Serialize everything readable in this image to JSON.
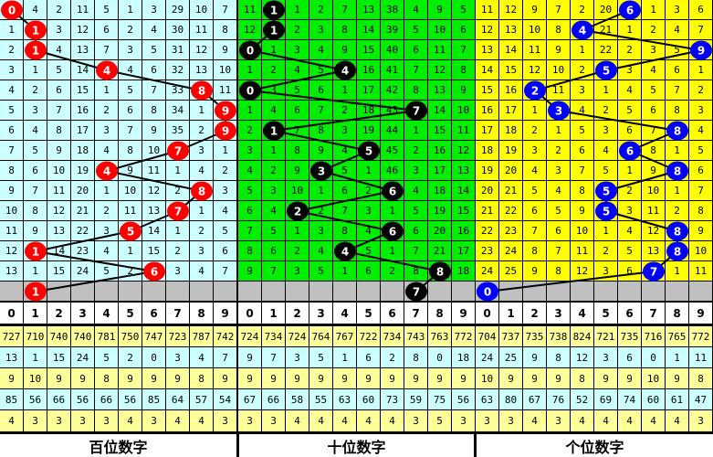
{
  "header_digits": [
    "0",
    "1",
    "2",
    "3",
    "4",
    "5",
    "6",
    "7",
    "8",
    "9"
  ],
  "panels": [
    {
      "title": "百位数字",
      "bg_color": "#ccffff",
      "ball_color": "#ff0000",
      "rows": [
        [
          0,
          4,
          2,
          11,
          5,
          1,
          3,
          29,
          10,
          7
        ],
        [
          1,
          1,
          3,
          12,
          6,
          2,
          4,
          30,
          11,
          8
        ],
        [
          2,
          1,
          4,
          13,
          7,
          3,
          5,
          31,
          12,
          9
        ],
        [
          3,
          1,
          5,
          14,
          4,
          4,
          6,
          32,
          13,
          10
        ],
        [
          4,
          2,
          6,
          15,
          1,
          5,
          7,
          33,
          8,
          11
        ],
        [
          5,
          3,
          7,
          16,
          2,
          6,
          8,
          34,
          1,
          9
        ],
        [
          6,
          4,
          8,
          17,
          3,
          7,
          9,
          35,
          2,
          9
        ],
        [
          7,
          5,
          9,
          18,
          4,
          8,
          10,
          7,
          3,
          1
        ],
        [
          8,
          6,
          10,
          19,
          4,
          9,
          11,
          1,
          4,
          2
        ],
        [
          9,
          7,
          11,
          20,
          1,
          10,
          12,
          2,
          8,
          3
        ],
        [
          10,
          8,
          12,
          21,
          2,
          11,
          13,
          7,
          1,
          4
        ],
        [
          11,
          9,
          13,
          22,
          3,
          5,
          14,
          1,
          2,
          5
        ],
        [
          12,
          1,
          14,
          23,
          4,
          1,
          15,
          2,
          3,
          6
        ],
        [
          13,
          1,
          15,
          24,
          5,
          2,
          6,
          3,
          4,
          7
        ]
      ],
      "hits": [
        0,
        1,
        1,
        4,
        8,
        9,
        9,
        7,
        4,
        8,
        7,
        5,
        1,
        6
      ],
      "pending": 1,
      "stats": [
        [
          727,
          710,
          740,
          740,
          781,
          750,
          747,
          723,
          787,
          742
        ],
        [
          13,
          1,
          15,
          24,
          5,
          2,
          0,
          3,
          4,
          7
        ],
        [
          9,
          10,
          9,
          9,
          8,
          9,
          9,
          9,
          8,
          9
        ],
        [
          85,
          56,
          66,
          56,
          66,
          56,
          85,
          64,
          57,
          54
        ],
        [
          4,
          3,
          3,
          3,
          3,
          4,
          3,
          4,
          4,
          3
        ]
      ]
    },
    {
      "title": "十位数字",
      "bg_color": "#00ee00",
      "ball_color": "#000000",
      "rows": [
        [
          11,
          1,
          1,
          2,
          7,
          13,
          38,
          4,
          9,
          5
        ],
        [
          12,
          1,
          2,
          3,
          8,
          14,
          39,
          5,
          10,
          6
        ],
        [
          0,
          1,
          3,
          4,
          9,
          15,
          40,
          6,
          11,
          7
        ],
        [
          1,
          2,
          4,
          5,
          4,
          16,
          41,
          7,
          12,
          8
        ],
        [
          0,
          3,
          5,
          6,
          1,
          17,
          42,
          8,
          13,
          9
        ],
        [
          1,
          4,
          6,
          7,
          2,
          18,
          43,
          7,
          14,
          10
        ],
        [
          2,
          1,
          7,
          8,
          3,
          19,
          44,
          1,
          15,
          11
        ],
        [
          3,
          1,
          8,
          9,
          4,
          5,
          45,
          2,
          16,
          12
        ],
        [
          4,
          2,
          9,
          3,
          5,
          1,
          46,
          3,
          17,
          13
        ],
        [
          5,
          3,
          10,
          1,
          6,
          2,
          6,
          4,
          18,
          14
        ],
        [
          6,
          4,
          2,
          2,
          7,
          3,
          1,
          5,
          19,
          15
        ],
        [
          7,
          5,
          1,
          3,
          8,
          4,
          6,
          6,
          20,
          16
        ],
        [
          8,
          6,
          2,
          4,
          4,
          5,
          1,
          7,
          21,
          17
        ],
        [
          9,
          7,
          3,
          5,
          1,
          6,
          2,
          8,
          8,
          18
        ]
      ],
      "hits": [
        1,
        1,
        0,
        4,
        0,
        7,
        1,
        5,
        3,
        6,
        2,
        6,
        4,
        8
      ],
      "pending": 7,
      "stats": [
        [
          724,
          734,
          724,
          764,
          767,
          722,
          734,
          743,
          763,
          772
        ],
        [
          9,
          7,
          3,
          5,
          1,
          6,
          2,
          8,
          0,
          18
        ],
        [
          9,
          9,
          9,
          9,
          9,
          9,
          9,
          9,
          9,
          9
        ],
        [
          67,
          66,
          58,
          55,
          63,
          60,
          73,
          59,
          75,
          56
        ],
        [
          3,
          3,
          4,
          4,
          4,
          4,
          4,
          3,
          5,
          3
        ]
      ]
    },
    {
      "title": "个位数字",
      "bg_color": "#ffff00",
      "ball_color": "#0000ff",
      "rows": [
        [
          11,
          12,
          9,
          7,
          2,
          20,
          6,
          1,
          3,
          6
        ],
        [
          12,
          13,
          10,
          8,
          4,
          21,
          1,
          2,
          4,
          7
        ],
        [
          13,
          14,
          11,
          9,
          1,
          22,
          2,
          3,
          5,
          9
        ],
        [
          14,
          15,
          12,
          10,
          2,
          5,
          3,
          4,
          6,
          1
        ],
        [
          15,
          16,
          2,
          11,
          3,
          1,
          4,
          5,
          7,
          2
        ],
        [
          16,
          17,
          1,
          3,
          4,
          2,
          5,
          6,
          8,
          3
        ],
        [
          17,
          18,
          2,
          1,
          5,
          3,
          6,
          7,
          8,
          4
        ],
        [
          18,
          19,
          3,
          2,
          6,
          4,
          6,
          8,
          1,
          5
        ],
        [
          19,
          20,
          4,
          3,
          7,
          5,
          1,
          9,
          8,
          6
        ],
        [
          20,
          21,
          5,
          4,
          8,
          5,
          2,
          10,
          1,
          7
        ],
        [
          21,
          22,
          6,
          5,
          9,
          5,
          3,
          11,
          2,
          8
        ],
        [
          22,
          23,
          7,
          6,
          10,
          1,
          4,
          12,
          8,
          9
        ],
        [
          23,
          24,
          8,
          7,
          11,
          2,
          5,
          13,
          8,
          10
        ],
        [
          24,
          25,
          9,
          8,
          12,
          3,
          6,
          7,
          1,
          11
        ]
      ],
      "hits": [
        6,
        4,
        9,
        5,
        2,
        3,
        8,
        6,
        8,
        5,
        5,
        8,
        8,
        7
      ],
      "pending": 0,
      "stats": [
        [
          704,
          737,
          735,
          738,
          824,
          721,
          735,
          716,
          765,
          772
        ],
        [
          24,
          25,
          9,
          8,
          12,
          3,
          6,
          0,
          1,
          11
        ],
        [
          10,
          9,
          9,
          9,
          8,
          9,
          9,
          10,
          9,
          8
        ],
        [
          63,
          80,
          67,
          76,
          52,
          69,
          74,
          60,
          61,
          47
        ],
        [
          3,
          3,
          4,
          3,
          4,
          4,
          4,
          4,
          4,
          3
        ]
      ]
    }
  ],
  "colors": {
    "pending_row": "#c0c0c0",
    "stat_yellow": "#ffff99",
    "stat_cyan": "#ccffff"
  }
}
